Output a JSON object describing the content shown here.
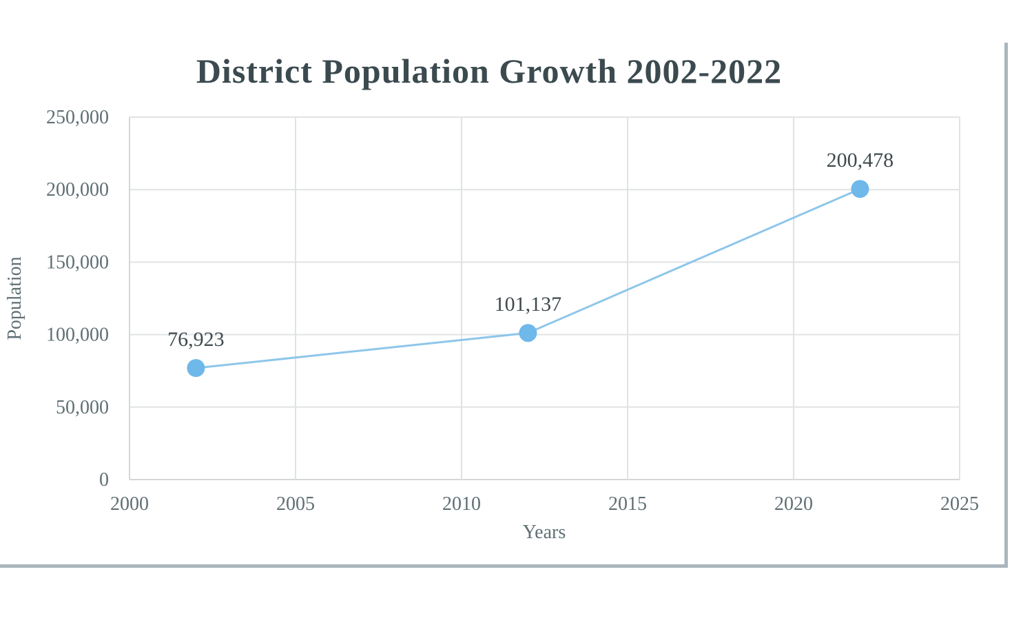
{
  "chart_data": {
    "type": "line",
    "title": "District Population Growth 2002-2022",
    "xlabel": "Years",
    "ylabel": "Population",
    "xlim": [
      2000,
      2025
    ],
    "ylim": [
      0,
      250000
    ],
    "x_ticks": [
      2000,
      2005,
      2010,
      2015,
      2020,
      2025
    ],
    "x_tick_labels": [
      "2000",
      "2005",
      "2010",
      "2015",
      "2020",
      "2025"
    ],
    "y_ticks": [
      0,
      50000,
      100000,
      150000,
      200000,
      250000
    ],
    "y_tick_labels": [
      "0",
      "50,000",
      "100,000",
      "150,000",
      "200,000",
      "250,000"
    ],
    "grid": true,
    "series": [
      {
        "name": "Population",
        "color": "#8ec6ea",
        "marker_color": "#6eb8ea",
        "points": [
          {
            "x": 2002,
            "y": 76923,
            "label": "76,923"
          },
          {
            "x": 2012,
            "y": 101137,
            "label": "101,137"
          },
          {
            "x": 2022,
            "y": 200478,
            "label": "200,478"
          }
        ]
      }
    ]
  }
}
